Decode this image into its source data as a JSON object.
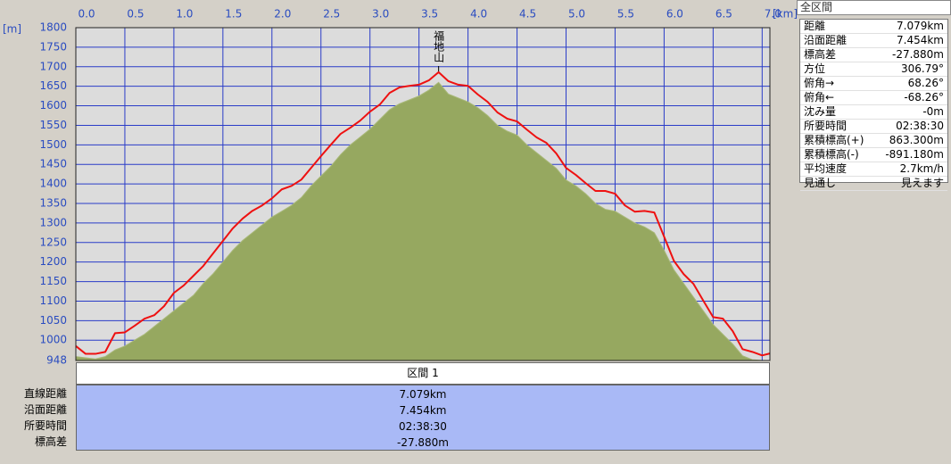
{
  "chart_data": {
    "type": "line",
    "x_unit": "[km]",
    "y_unit": "[m]",
    "x": [
      0.0,
      0.1,
      0.2,
      0.3,
      0.4,
      0.5,
      0.6,
      0.7,
      0.8,
      0.9,
      1.0,
      1.1,
      1.2,
      1.3,
      1.4,
      1.5,
      1.6,
      1.7,
      1.8,
      1.9,
      2.0,
      2.1,
      2.2,
      2.3,
      2.4,
      2.5,
      2.6,
      2.7,
      2.8,
      2.9,
      3.0,
      3.1,
      3.2,
      3.3,
      3.4,
      3.5,
      3.6,
      3.7,
      3.8,
      3.9,
      4.0,
      4.1,
      4.2,
      4.3,
      4.4,
      4.5,
      4.6,
      4.7,
      4.8,
      4.9,
      5.0,
      5.1,
      5.2,
      5.3,
      5.4,
      5.5,
      5.6,
      5.7,
      5.8,
      5.9,
      6.0,
      6.1,
      6.2,
      6.3,
      6.4,
      6.5,
      6.6,
      6.7,
      6.8,
      6.9,
      7.0,
      7.079
    ],
    "series": [
      {
        "kind": "area",
        "color": "#96a860",
        "values": [
          958,
          955,
          952,
          958,
          975,
          985,
          1000,
          1015,
          1035,
          1055,
          1075,
          1095,
          1115,
          1145,
          1170,
          1200,
          1230,
          1255,
          1275,
          1295,
          1315,
          1330,
          1345,
          1365,
          1395,
          1420,
          1445,
          1475,
          1500,
          1520,
          1540,
          1565,
          1590,
          1605,
          1615,
          1625,
          1640,
          1660,
          1630,
          1620,
          1610,
          1595,
          1575,
          1550,
          1535,
          1525,
          1500,
          1480,
          1460,
          1440,
          1410,
          1395,
          1375,
          1350,
          1335,
          1330,
          1315,
          1300,
          1290,
          1275,
          1230,
          1180,
          1145,
          1110,
          1075,
          1040,
          1015,
          990,
          960,
          950,
          948,
          948
        ]
      },
      {
        "kind": "line",
        "color": "#ee1111",
        "values": [
          985,
          965,
          965,
          970,
          1018,
          1020,
          1037,
          1055,
          1064,
          1087,
          1121,
          1140,
          1165,
          1190,
          1222,
          1254,
          1286,
          1311,
          1331,
          1345,
          1363,
          1386,
          1395,
          1411,
          1441,
          1471,
          1500,
          1528,
          1544,
          1562,
          1585,
          1603,
          1633,
          1647,
          1651,
          1654,
          1665,
          1686,
          1663,
          1654,
          1651,
          1629,
          1610,
          1583,
          1567,
          1560,
          1539,
          1519,
          1505,
          1478,
          1441,
          1423,
          1402,
          1382,
          1382,
          1375,
          1345,
          1329,
          1331,
          1327,
          1265,
          1203,
          1169,
          1144,
          1101,
          1059,
          1055,
          1023,
          977,
          970,
          961,
          966
        ]
      }
    ],
    "annotation": {
      "text": "福地山",
      "x": 3.7
    },
    "xlim": [
      0,
      7.079
    ],
    "ylim": [
      948,
      1800
    ],
    "xticks": [
      {
        "value": 0,
        "label": "0.0"
      },
      0.5,
      {
        "value": 1,
        "label": "1.0"
      },
      1.5,
      {
        "value": 2,
        "label": "2.0"
      },
      2.5,
      {
        "value": 3,
        "label": "3.0"
      },
      3.5,
      {
        "value": 4,
        "label": "4.0"
      },
      4.5,
      {
        "value": 5,
        "label": "5.0"
      },
      5.5,
      {
        "value": 6,
        "label": "6.0"
      },
      6.5,
      {
        "value": 7,
        "label": "7.0"
      }
    ],
    "yticks": [
      948,
      1000,
      1050,
      1100,
      1150,
      1200,
      1250,
      1300,
      1350,
      1400,
      1450,
      1500,
      1550,
      1600,
      1650,
      1700,
      1750,
      1800
    ],
    "grid": true,
    "grid_color": "#2a3cc8",
    "plot_background": "#dcdcdc"
  },
  "summary": {
    "title": "全区間",
    "rows": [
      [
        "距離",
        "7.079km"
      ],
      [
        "沿面距離",
        "7.454km"
      ],
      [
        "標高差",
        "-27.880m"
      ],
      [
        "方位",
        "306.79°"
      ],
      [
        "俯角→",
        "68.26°"
      ],
      [
        "俯角←",
        "-68.26°"
      ],
      [
        "沈み量",
        "-0m"
      ],
      [
        "所要時間",
        "02:38:30"
      ],
      [
        "累積標高(+)",
        "863.300m"
      ],
      [
        "累積標高(-)",
        "-891.180m"
      ],
      [
        "平均速度",
        "2.7km/h"
      ],
      [
        "見通し",
        "見えます"
      ]
    ]
  },
  "section": {
    "header": "区間 1",
    "rows": [
      [
        "直線距離",
        "7.079km"
      ],
      [
        "沿面距離",
        "7.454km"
      ],
      [
        "所要時間",
        "02:38:30"
      ],
      [
        "標高差",
        "-27.880m"
      ]
    ]
  }
}
